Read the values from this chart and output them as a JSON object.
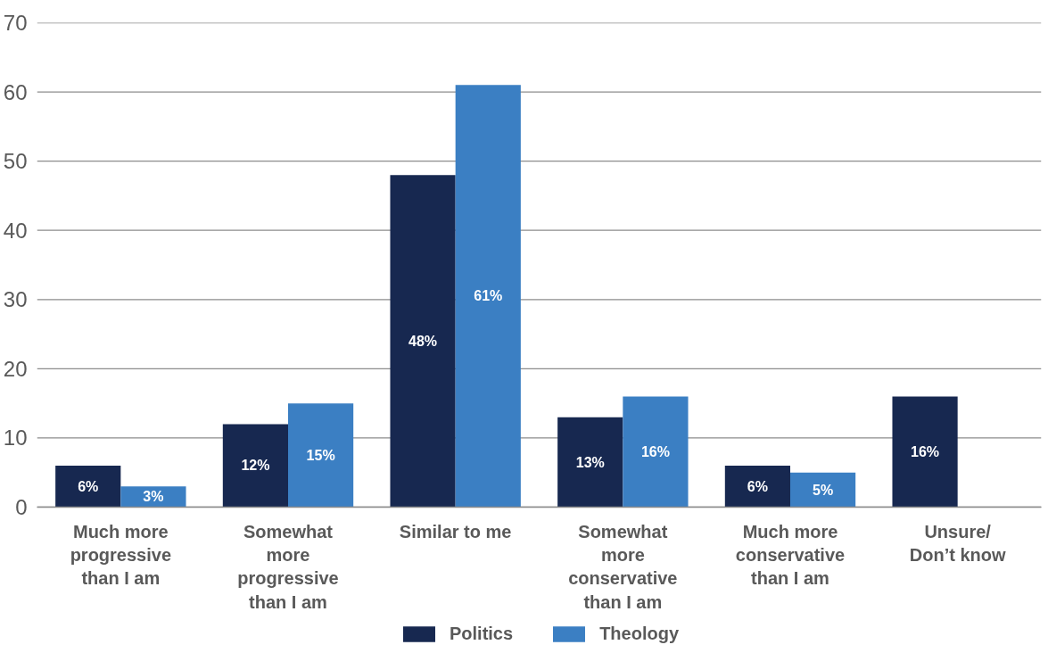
{
  "chart_data": {
    "type": "bar",
    "categories": [
      "Much more progressive than I am",
      "Somewhat more progressive than I am",
      "Similar to me",
      "Somewhat more conservative than I am",
      "Much more conservative than I am",
      "Unsure/ Don’t know"
    ],
    "series": [
      {
        "name": "Politics",
        "color": "#172850",
        "values": [
          6,
          12,
          48,
          13,
          6,
          16
        ],
        "value_labels": [
          "6%",
          "12%",
          "48%",
          "13%",
          "6%",
          "16%"
        ]
      },
      {
        "name": "Theology",
        "color": "#3b7fc3",
        "values": [
          3,
          15,
          61,
          16,
          5,
          null
        ],
        "value_labels": [
          "3%",
          "15%",
          "61%",
          "16%",
          "5%",
          null
        ]
      }
    ],
    "ylim": [
      0,
      70
    ],
    "yticks": [
      0,
      10,
      20,
      30,
      40,
      50,
      60,
      70
    ],
    "grid": "y",
    "legend": "bottom"
  }
}
